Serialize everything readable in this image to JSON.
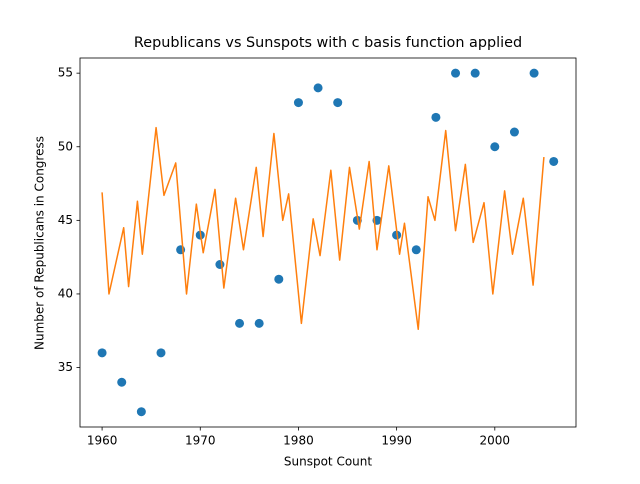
{
  "chart_data": {
    "type": "scatter",
    "title": "Republicans vs Sunspots with c basis function applied",
    "xlabel": "Sunspot Count",
    "ylabel": "Number of Republicans in Congress",
    "xlim": [
      1957.75,
      2008.27
    ],
    "ylim": [
      30.96,
      56.03
    ],
    "xticks": [
      1960,
      1970,
      1980,
      1990,
      2000
    ],
    "yticks": [
      35,
      40,
      45,
      50,
      55
    ],
    "series": [
      {
        "type": "scatter",
        "color": "#1f77b4",
        "x": [
          1960,
          1962,
          1964,
          1966,
          1968,
          1970,
          1972,
          1974,
          1976,
          1978,
          1980,
          1982,
          1984,
          1986,
          1988,
          1990,
          1992,
          1994,
          1996,
          1998,
          2000,
          2002,
          2004,
          2006
        ],
        "values": [
          36,
          34,
          32,
          36,
          43,
          44,
          42,
          38,
          38,
          41,
          53,
          54,
          53,
          45,
          45,
          44,
          43,
          52,
          55,
          55,
          50,
          51,
          55,
          49
        ]
      },
      {
        "type": "line",
        "color": "#ff7f0e",
        "x": [
          1960.0,
          1960.7,
          1962.2,
          1962.7,
          1963.6,
          1964.1,
          1965.5,
          1966.3,
          1967.5,
          1968.6,
          1969.6,
          1970.3,
          1971.5,
          1972.4,
          1973.6,
          1974.4,
          1975.7,
          1976.4,
          1977.5,
          1978.4,
          1979.0,
          1980.3,
          1981.5,
          1982.2,
          1983.3,
          1984.2,
          1985.2,
          1986.2,
          1987.2,
          1988.0,
          1989.2,
          1990.3,
          1990.8,
          1992.2,
          1993.2,
          1993.9,
          1995.0,
          1996.0,
          1997.0,
          1997.8,
          1998.9,
          1999.8,
          2001.0,
          2001.8,
          2002.9,
          2003.9,
          2005.0
        ],
        "values": [
          46.9,
          40.0,
          44.5,
          40.5,
          46.3,
          42.7,
          51.3,
          46.7,
          48.9,
          40.0,
          46.1,
          42.8,
          47.1,
          40.4,
          46.5,
          43.0,
          48.6,
          43.9,
          50.9,
          45.0,
          46.8,
          38.0,
          45.1,
          42.6,
          48.4,
          42.3,
          48.6,
          44.4,
          49.0,
          43.0,
          48.7,
          42.7,
          44.8,
          37.6,
          46.6,
          45.0,
          51.1,
          44.3,
          48.8,
          43.5,
          46.2,
          40.0,
          47.0,
          42.7,
          46.5,
          40.6,
          49.3
        ]
      }
    ]
  }
}
